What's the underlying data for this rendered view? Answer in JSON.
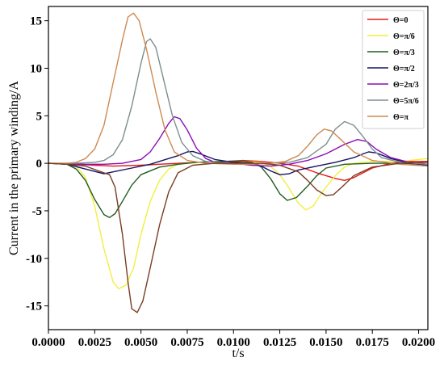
{
  "chart_data": {
    "type": "line",
    "xlabel": "t/s",
    "ylabel": "Current in the primary winding/A",
    "xlim": [
      0.0,
      0.0205
    ],
    "ylim": [
      -17.5,
      16.5
    ],
    "xticks": [
      "0.0000",
      "0.0025",
      "0.0050",
      "0.0075",
      "0.0100",
      "0.0125",
      "0.0150",
      "0.0175",
      "0.0200"
    ],
    "yticks": [
      "-15",
      "-10",
      "-5",
      "0",
      "5",
      "10",
      "15"
    ],
    "legend_position": "top-right",
    "grid": false,
    "series": [
      {
        "name": "Θ=0",
        "color": "#e41a1c",
        "points": [
          [
            0,
            0
          ],
          [
            0.0015,
            -0.1
          ],
          [
            0.0025,
            -0.2
          ],
          [
            0.0035,
            -0.3
          ],
          [
            0.005,
            -0.2
          ],
          [
            0.0065,
            -0.05
          ],
          [
            0.008,
            0.1
          ],
          [
            0.0095,
            0.2
          ],
          [
            0.0105,
            0.3
          ],
          [
            0.0115,
            0.2
          ],
          [
            0.0125,
            0
          ],
          [
            0.0135,
            -0.3
          ],
          [
            0.0145,
            -1.0
          ],
          [
            0.0155,
            -1.6
          ],
          [
            0.016,
            -1.8
          ],
          [
            0.0165,
            -1.5
          ],
          [
            0.0175,
            -0.5
          ],
          [
            0.0185,
            0
          ],
          [
            0.0195,
            0.2
          ],
          [
            0.0205,
            0.2
          ]
        ]
      },
      {
        "name": "Θ=π/6",
        "color": "#f2ef3f",
        "points": [
          [
            0,
            0
          ],
          [
            0.001,
            -0.1
          ],
          [
            0.0015,
            -0.3
          ],
          [
            0.002,
            -1.5
          ],
          [
            0.0025,
            -4.5
          ],
          [
            0.003,
            -9
          ],
          [
            0.0035,
            -12.5
          ],
          [
            0.0038,
            -13.2
          ],
          [
            0.0042,
            -12.8
          ],
          [
            0.0046,
            -11
          ],
          [
            0.005,
            -7.5
          ],
          [
            0.0055,
            -4
          ],
          [
            0.006,
            -1.8
          ],
          [
            0.0065,
            -0.6
          ],
          [
            0.007,
            -0.1
          ],
          [
            0.008,
            0.1
          ],
          [
            0.009,
            0.2
          ],
          [
            0.0105,
            0.2
          ],
          [
            0.0115,
            0.1
          ],
          [
            0.012,
            -0.3
          ],
          [
            0.0125,
            -1.2
          ],
          [
            0.013,
            -2.6
          ],
          [
            0.0135,
            -4.2
          ],
          [
            0.0139,
            -4.9
          ],
          [
            0.0143,
            -4.5
          ],
          [
            0.0148,
            -3
          ],
          [
            0.0155,
            -1.3
          ],
          [
            0.016,
            -0.4
          ],
          [
            0.0165,
            0
          ],
          [
            0.0175,
            0.2
          ],
          [
            0.019,
            0.2
          ],
          [
            0.0205,
            0.5
          ]
        ]
      },
      {
        "name": "Θ=π/3",
        "color": "#1f5d1f",
        "points": [
          [
            0,
            0
          ],
          [
            0.001,
            -0.1
          ],
          [
            0.0015,
            -0.6
          ],
          [
            0.002,
            -1.8
          ],
          [
            0.0025,
            -3.8
          ],
          [
            0.003,
            -5.4
          ],
          [
            0.0033,
            -5.7
          ],
          [
            0.0036,
            -5.3
          ],
          [
            0.004,
            -4
          ],
          [
            0.0045,
            -2.3
          ],
          [
            0.005,
            -1.2
          ],
          [
            0.006,
            -0.4
          ],
          [
            0.007,
            -0.1
          ],
          [
            0.008,
            0.1
          ],
          [
            0.0095,
            0.2
          ],
          [
            0.0105,
            0.2
          ],
          [
            0.011,
            0.1
          ],
          [
            0.0115,
            -0.4
          ],
          [
            0.012,
            -1.6
          ],
          [
            0.0125,
            -3.2
          ],
          [
            0.0129,
            -3.9
          ],
          [
            0.0134,
            -3.6
          ],
          [
            0.014,
            -2.4
          ],
          [
            0.0145,
            -1.3
          ],
          [
            0.015,
            -0.5
          ],
          [
            0.016,
            -0.1
          ],
          [
            0.0175,
            0
          ],
          [
            0.019,
            0
          ],
          [
            0.0205,
            -0.1
          ]
        ]
      },
      {
        "name": "Θ=π/2",
        "color": "#151565",
        "points": [
          [
            0,
            0
          ],
          [
            0.001,
            -0.1
          ],
          [
            0.002,
            -0.6
          ],
          [
            0.003,
            -1.1
          ],
          [
            0.0035,
            -0.9
          ],
          [
            0.0045,
            -0.5
          ],
          [
            0.0055,
            -0.1
          ],
          [
            0.0065,
            0.5
          ],
          [
            0.007,
            0.8
          ],
          [
            0.0075,
            1.2
          ],
          [
            0.0078,
            1.25
          ],
          [
            0.0082,
            1
          ],
          [
            0.009,
            0.4
          ],
          [
            0.01,
            0.1
          ],
          [
            0.011,
            0
          ],
          [
            0.0115,
            -0.3
          ],
          [
            0.012,
            -0.8
          ],
          [
            0.0125,
            -1.2
          ],
          [
            0.013,
            -1.1
          ],
          [
            0.0135,
            -0.7
          ],
          [
            0.0145,
            -0.3
          ],
          [
            0.0155,
            0.1
          ],
          [
            0.0165,
            0.6
          ],
          [
            0.017,
            1.0
          ],
          [
            0.0173,
            1.2
          ],
          [
            0.0177,
            1.1
          ],
          [
            0.0185,
            0.5
          ],
          [
            0.0195,
            0
          ],
          [
            0.0205,
            -0.2
          ]
        ]
      },
      {
        "name": "Θ=2π/3",
        "color": "#8b0cb5",
        "points": [
          [
            0,
            0
          ],
          [
            0.002,
            -0.1
          ],
          [
            0.003,
            -0.1
          ],
          [
            0.004,
            0
          ],
          [
            0.005,
            0.4
          ],
          [
            0.0055,
            1.2
          ],
          [
            0.006,
            2.6
          ],
          [
            0.0065,
            4.2
          ],
          [
            0.0068,
            4.9
          ],
          [
            0.0071,
            4.7
          ],
          [
            0.0075,
            3.5
          ],
          [
            0.008,
            1.6
          ],
          [
            0.0085,
            0.5
          ],
          [
            0.009,
            0.1
          ],
          [
            0.01,
            0
          ],
          [
            0.011,
            -0.2
          ],
          [
            0.012,
            -0.3
          ],
          [
            0.013,
            -0.1
          ],
          [
            0.014,
            0.3
          ],
          [
            0.015,
            1.0
          ],
          [
            0.016,
            2.0
          ],
          [
            0.0167,
            2.5
          ],
          [
            0.0172,
            2.3
          ],
          [
            0.0177,
            1.5
          ],
          [
            0.0185,
            0.6
          ],
          [
            0.0195,
            0.1
          ],
          [
            0.0205,
            -0.1
          ]
        ]
      },
      {
        "name": "Θ=5π/6",
        "color": "#7b8f8f",
        "points": [
          [
            0,
            0
          ],
          [
            0.0015,
            0
          ],
          [
            0.0025,
            0.1
          ],
          [
            0.003,
            0.3
          ],
          [
            0.0035,
            0.9
          ],
          [
            0.004,
            2.5
          ],
          [
            0.0045,
            6
          ],
          [
            0.005,
            10.5
          ],
          [
            0.0053,
            12.8
          ],
          [
            0.0055,
            13.1
          ],
          [
            0.0058,
            12.2
          ],
          [
            0.0062,
            9
          ],
          [
            0.0067,
            5
          ],
          [
            0.0072,
            2.2
          ],
          [
            0.0078,
            0.8
          ],
          [
            0.0085,
            0.2
          ],
          [
            0.0095,
            0
          ],
          [
            0.011,
            0
          ],
          [
            0.012,
            0
          ],
          [
            0.013,
            0.1
          ],
          [
            0.014,
            0.6
          ],
          [
            0.015,
            2
          ],
          [
            0.0155,
            3.6
          ],
          [
            0.016,
            4.4
          ],
          [
            0.0165,
            4
          ],
          [
            0.017,
            2.8
          ],
          [
            0.0175,
            1.5
          ],
          [
            0.018,
            0.6
          ],
          [
            0.019,
            0.1
          ],
          [
            0.0205,
            -0.1
          ]
        ]
      },
      {
        "name": "Θ=π",
        "color": "#cd8a52",
        "points": [
          [
            0,
            0
          ],
          [
            0.001,
            0
          ],
          [
            0.0015,
            0.1
          ],
          [
            0.002,
            0.5
          ],
          [
            0.0025,
            1.5
          ],
          [
            0.003,
            4
          ],
          [
            0.0035,
            8.5
          ],
          [
            0.004,
            13
          ],
          [
            0.0043,
            15.4
          ],
          [
            0.0046,
            15.8
          ],
          [
            0.0049,
            15
          ],
          [
            0.0053,
            12
          ],
          [
            0.0058,
            7.5
          ],
          [
            0.0063,
            3.5
          ],
          [
            0.0068,
            1.2
          ],
          [
            0.0075,
            0.3
          ],
          [
            0.0085,
            0
          ],
          [
            0.01,
            -0.1
          ],
          [
            0.011,
            -0.1
          ],
          [
            0.012,
            0
          ],
          [
            0.0128,
            0.2
          ],
          [
            0.0135,
            0.8
          ],
          [
            0.014,
            1.8
          ],
          [
            0.0145,
            3
          ],
          [
            0.0149,
            3.6
          ],
          [
            0.0153,
            3.4
          ],
          [
            0.0158,
            2.5
          ],
          [
            0.0165,
            1.2
          ],
          [
            0.0175,
            0.3
          ],
          [
            0.019,
            -0.1
          ],
          [
            0.0205,
            -0.3
          ]
        ]
      },
      {
        "name": "",
        "color": "#7a3d22",
        "points": [
          [
            0,
            0
          ],
          [
            0.001,
            -0.1
          ],
          [
            0.002,
            -0.3
          ],
          [
            0.003,
            -1.0
          ],
          [
            0.0033,
            -1.2
          ],
          [
            0.0036,
            -2.5
          ],
          [
            0.004,
            -7.5
          ],
          [
            0.0043,
            -12.5
          ],
          [
            0.0045,
            -15.3
          ],
          [
            0.0048,
            -15.7
          ],
          [
            0.0051,
            -14.5
          ],
          [
            0.0055,
            -11
          ],
          [
            0.006,
            -6.5
          ],
          [
            0.0065,
            -3
          ],
          [
            0.007,
            -1
          ],
          [
            0.0078,
            -0.2
          ],
          [
            0.009,
            0
          ],
          [
            0.0105,
            0
          ],
          [
            0.0115,
            0
          ],
          [
            0.0125,
            -0.2
          ],
          [
            0.0135,
            -0.9
          ],
          [
            0.014,
            -1.8
          ],
          [
            0.0145,
            -2.8
          ],
          [
            0.015,
            -3.4
          ],
          [
            0.0154,
            -3.3
          ],
          [
            0.0158,
            -2.6
          ],
          [
            0.0165,
            -1.3
          ],
          [
            0.0175,
            -0.4
          ],
          [
            0.019,
            0
          ],
          [
            0.0205,
            0.1
          ]
        ]
      }
    ]
  }
}
